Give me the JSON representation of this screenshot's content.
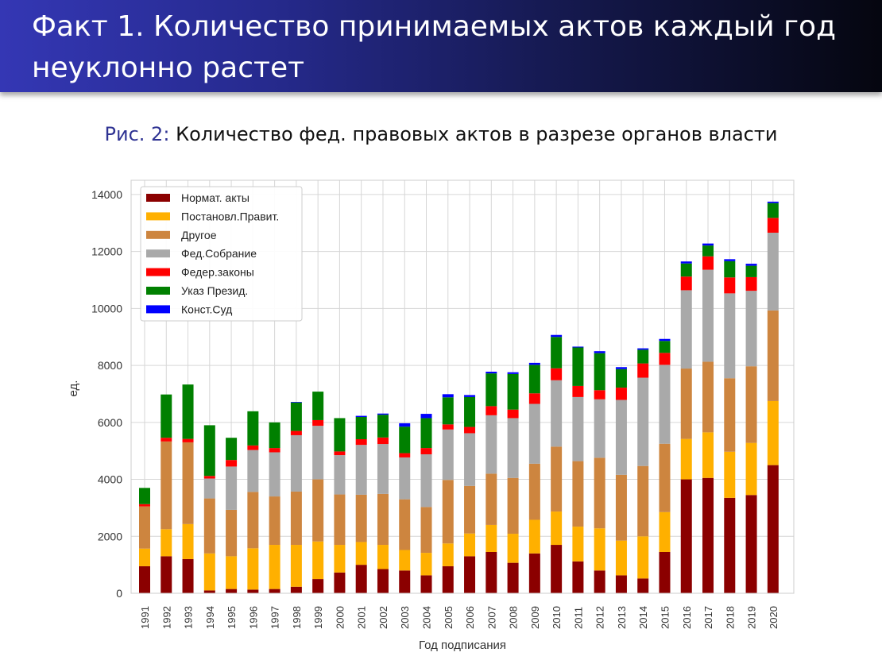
{
  "slide": {
    "title": "Факт 1. Количество принимаемых актов каждый год неуклонно растет",
    "caption_label": "Рис. 2:",
    "caption_text": "Количество фед. правовых актов в разрезе органов власти"
  },
  "chart_data": {
    "type": "bar",
    "stacked": true,
    "xlabel": "Год подписания",
    "ylabel": "ед.",
    "ylim": [
      0,
      14000
    ],
    "yticks": [
      0,
      2000,
      4000,
      6000,
      8000,
      10000,
      12000,
      14000
    ],
    "grid": true,
    "legend_position": "top-left",
    "categories": [
      "1991",
      "1992",
      "1993",
      "1994",
      "1995",
      "1996",
      "1997",
      "1998",
      "1999",
      "2000",
      "2001",
      "2002",
      "2003",
      "2004",
      "2005",
      "2006",
      "2007",
      "2008",
      "2009",
      "2010",
      "2011",
      "2012",
      "2013",
      "2014",
      "2015",
      "2016",
      "2017",
      "2018",
      "2019",
      "2020"
    ],
    "series": [
      {
        "name": "Нормат. акты",
        "color": "#8b0000",
        "values": [
          950,
          1300,
          1200,
          100,
          150,
          130,
          150,
          230,
          500,
          730,
          1000,
          850,
          800,
          630,
          950,
          1300,
          1450,
          1070,
          1400,
          1700,
          1120,
          800,
          630,
          520,
          1450,
          4000,
          4050,
          3350,
          3450,
          4500
        ]
      },
      {
        "name": "Постановл.Правит.",
        "color": "#ffb000",
        "values": [
          620,
          950,
          1230,
          1300,
          1150,
          1450,
          1550,
          1470,
          1320,
          970,
          800,
          850,
          720,
          790,
          800,
          800,
          950,
          1020,
          1180,
          1170,
          1220,
          1480,
          1220,
          1480,
          1400,
          1420,
          1600,
          1620,
          1830,
          2250
        ]
      },
      {
        "name": "Другое",
        "color": "#cd853f",
        "values": [
          1480,
          3080,
          2870,
          1930,
          1630,
          1980,
          1700,
          1870,
          2180,
          1770,
          1660,
          1790,
          1780,
          1610,
          2230,
          1670,
          1800,
          1960,
          1970,
          2280,
          2300,
          2480,
          2310,
          2470,
          2400,
          2470,
          2480,
          2580,
          2690,
          3180
        ]
      },
      {
        "name": "Фед.Собрание",
        "color": "#a9a9a9",
        "values": [
          0,
          0,
          0,
          700,
          1520,
          1470,
          1550,
          1980,
          1880,
          1380,
          1750,
          1750,
          1470,
          1850,
          1770,
          1850,
          2050,
          2100,
          2100,
          2330,
          2250,
          2050,
          2630,
          3100,
          2770,
          2750,
          3230,
          2980,
          2650,
          2730
        ]
      },
      {
        "name": "Федер.законы",
        "color": "#ff0000",
        "values": [
          80,
          130,
          120,
          90,
          230,
          160,
          150,
          150,
          200,
          130,
          200,
          230,
          150,
          220,
          180,
          220,
          320,
          300,
          370,
          420,
          390,
          320,
          430,
          500,
          420,
          480,
          470,
          560,
          480,
          520
        ]
      },
      {
        "name": "Указ Презид.",
        "color": "#008000",
        "values": [
          570,
          1520,
          1910,
          1780,
          780,
          1200,
          900,
          1000,
          1000,
          1170,
          780,
          800,
          930,
          1050,
          950,
          1050,
          1150,
          1250,
          1000,
          1100,
          1350,
          1300,
          650,
          480,
          420,
          460,
          380,
          570,
          400,
          520
        ]
      },
      {
        "name": "Конст.Суд",
        "color": "#0000ff",
        "values": [
          0,
          0,
          0,
          0,
          0,
          0,
          0,
          20,
          0,
          0,
          40,
          40,
          120,
          150,
          110,
          70,
          60,
          60,
          70,
          70,
          30,
          70,
          70,
          50,
          70,
          70,
          70,
          70,
          70,
          50
        ]
      }
    ]
  }
}
